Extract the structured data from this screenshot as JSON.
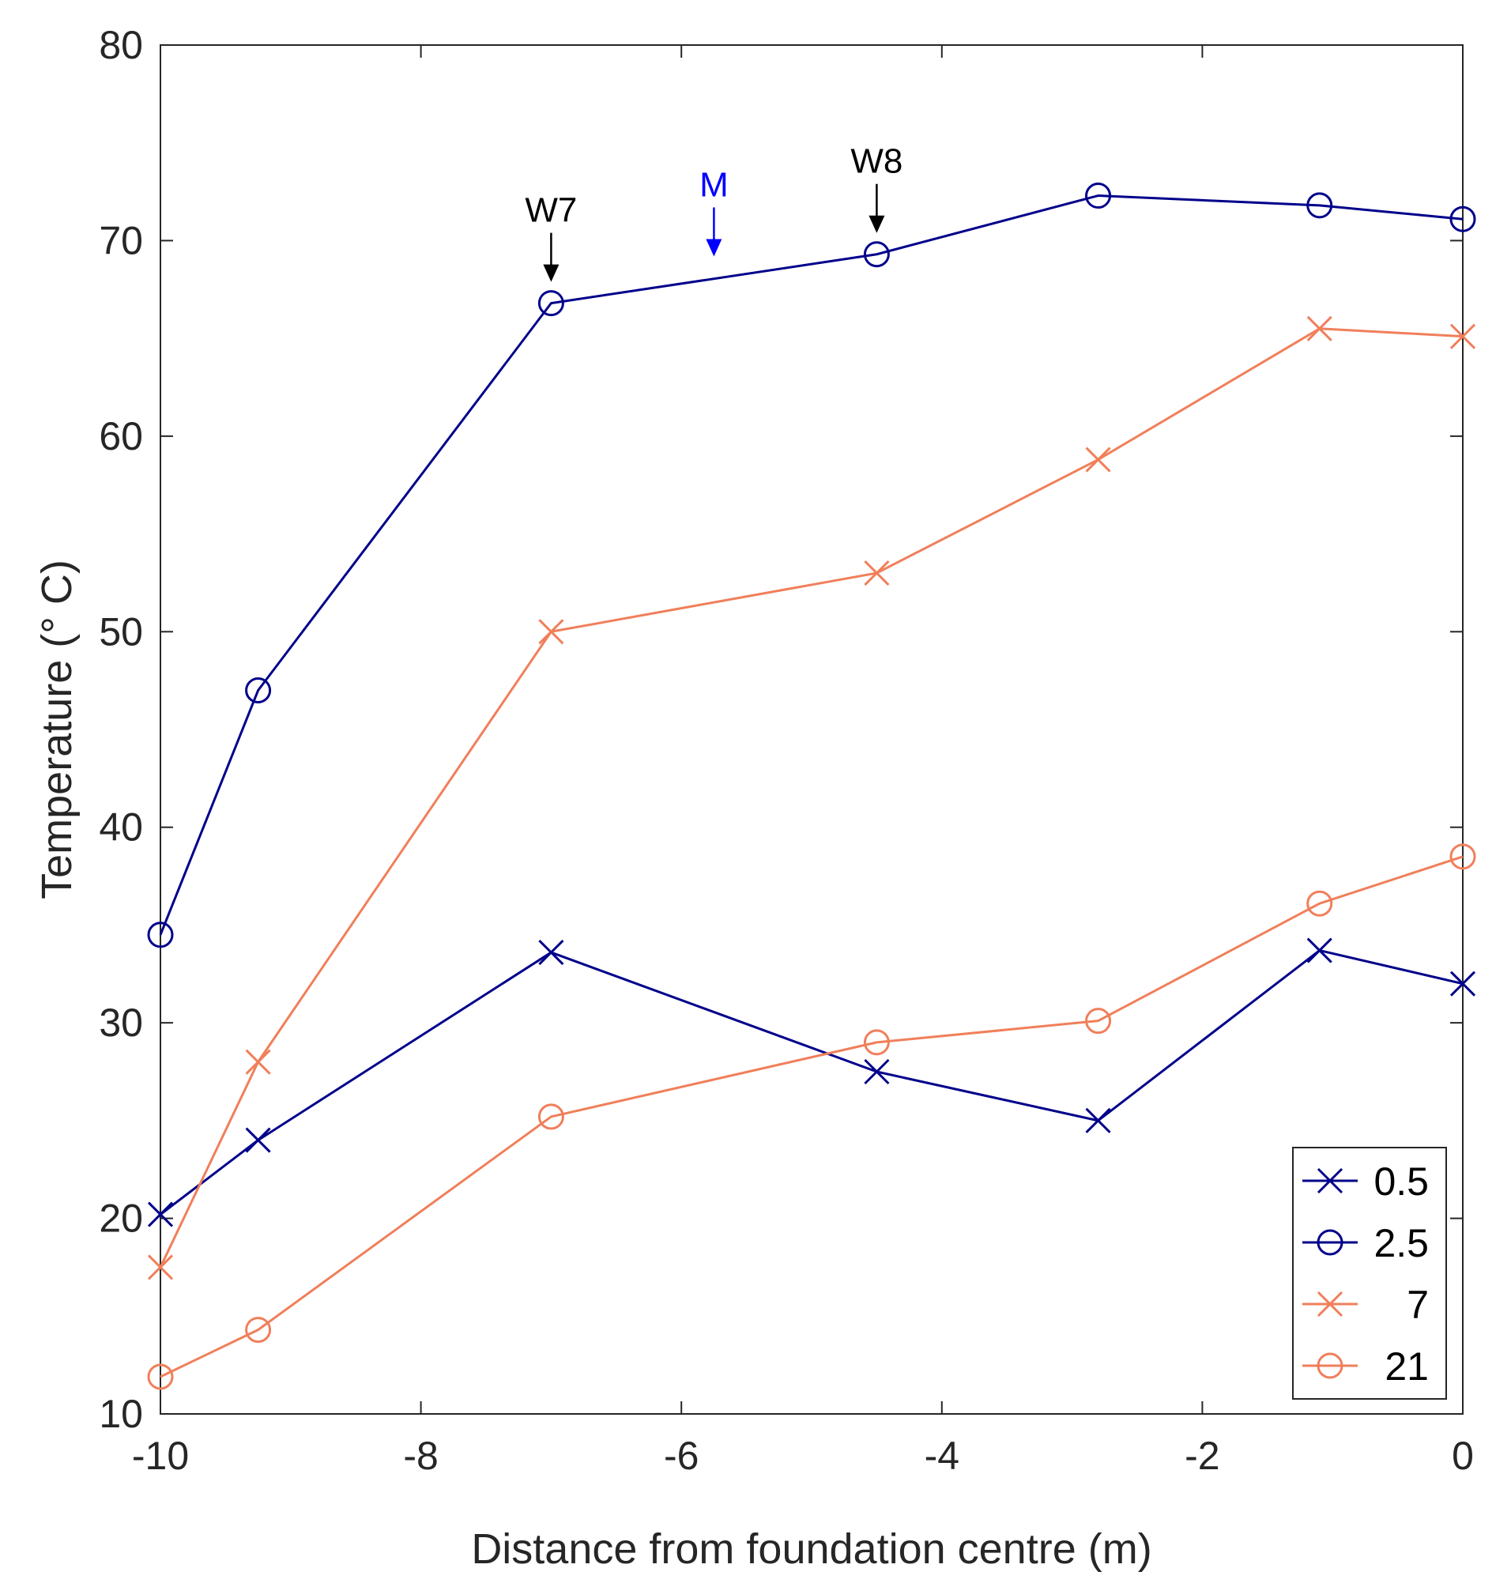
{
  "chart_data": {
    "type": "line",
    "title": "",
    "xlabel": "Distance from foundation centre (m)",
    "ylabel": "Temperature (° C)",
    "xlim": [
      -10,
      0
    ],
    "ylim": [
      10,
      80
    ],
    "xticks": [
      -10,
      -8,
      -6,
      -4,
      -2,
      0
    ],
    "yticks": [
      10,
      20,
      30,
      40,
      50,
      60,
      70,
      80
    ],
    "grid": false,
    "legend_position": "bottom-right",
    "x": [
      -10,
      -9.25,
      -7,
      -4.5,
      -2.8,
      -1.1,
      0
    ],
    "series": [
      {
        "name": "0.5",
        "color": "#00008B",
        "marker": "x",
        "values": [
          20.2,
          24.0,
          33.6,
          27.5,
          25.0,
          33.7,
          32.0
        ]
      },
      {
        "name": "2.5",
        "color": "#00008B",
        "marker": "o",
        "values": [
          34.5,
          47.0,
          66.8,
          69.3,
          72.3,
          71.8,
          71.1
        ]
      },
      {
        "name": "7",
        "color": "#F07F5A",
        "marker": "x",
        "values": [
          17.5,
          28.0,
          50.0,
          53.0,
          58.8,
          65.5,
          65.1
        ]
      },
      {
        "name": "21",
        "color": "#F07F5A",
        "marker": "o",
        "values": [
          11.9,
          14.3,
          25.2,
          29.0,
          30.1,
          36.1,
          38.5
        ]
      }
    ],
    "annotations": [
      {
        "label": "W7",
        "x": -7.0,
        "y": 66.8,
        "color": "#000000"
      },
      {
        "label": "M",
        "x": -5.75,
        "y": 68.1,
        "color": "#0000FF"
      },
      {
        "label": "W8",
        "x": -4.5,
        "y": 69.3,
        "color": "#000000"
      }
    ]
  }
}
